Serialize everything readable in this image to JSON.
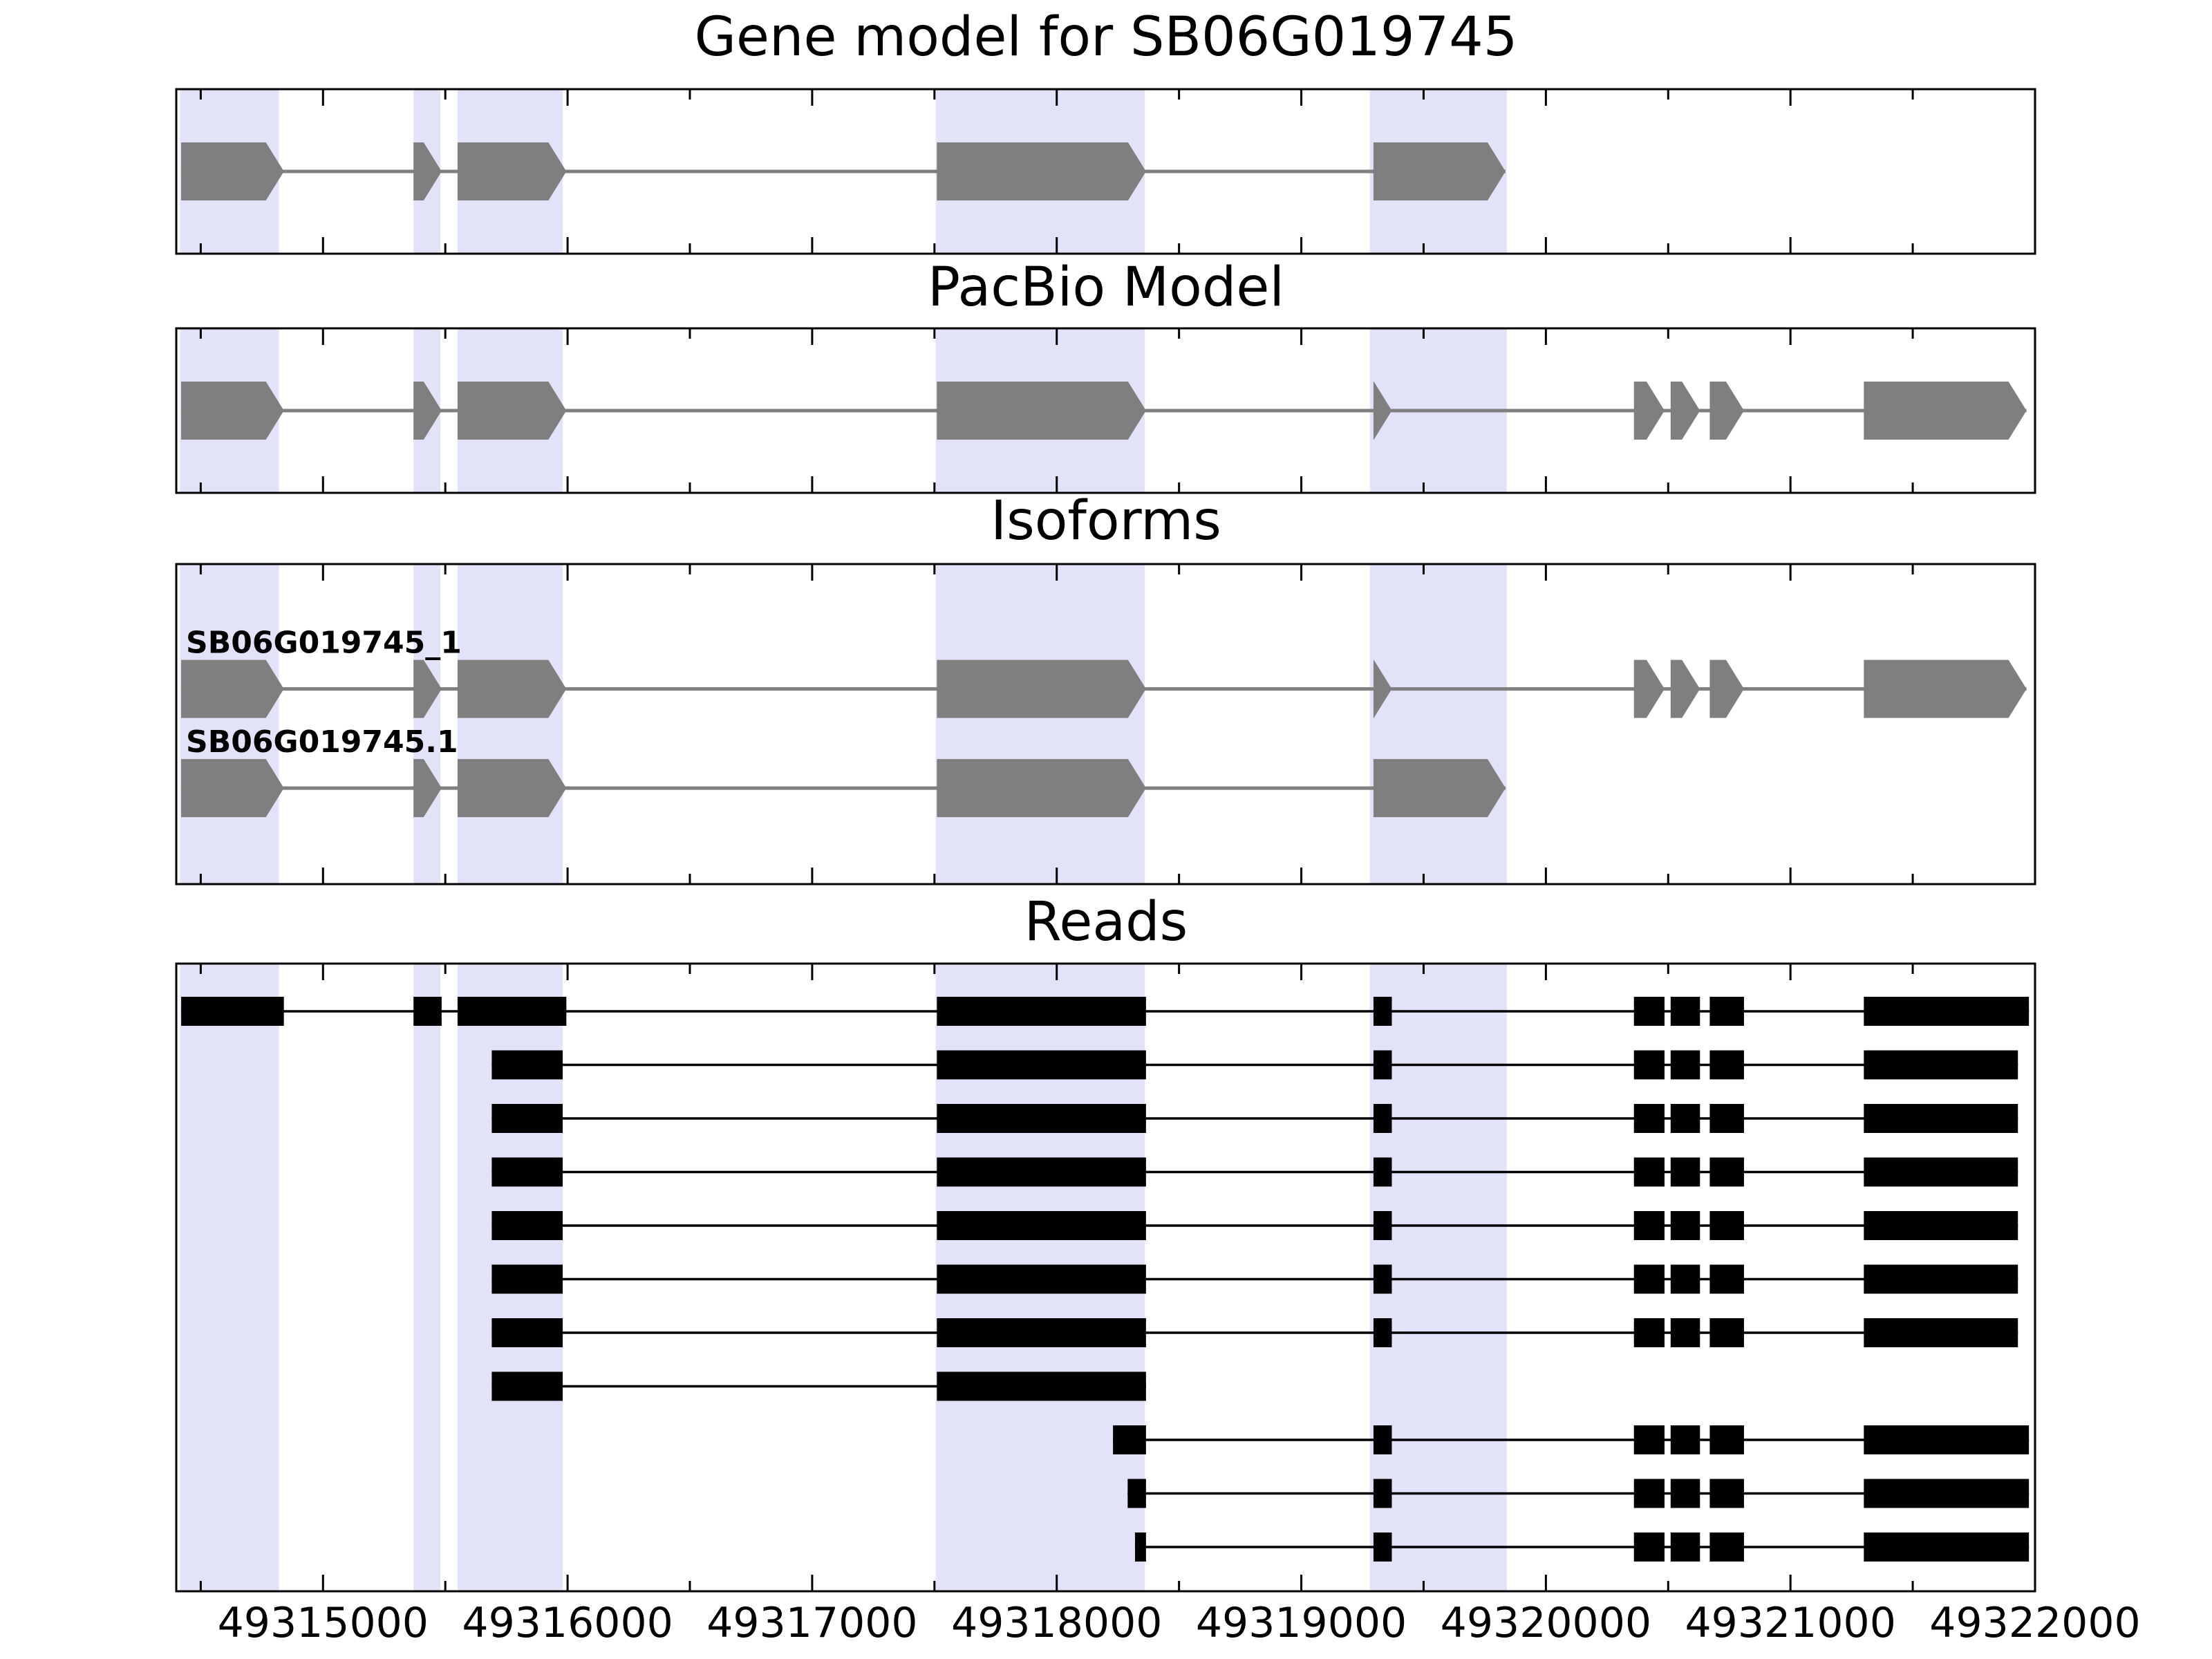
{
  "chart_data": {
    "type": "gene-model-tracks",
    "description": "Genome-browser style figure with four stacked tracks sharing one x axis (genomic coordinates). Grey pentagon arrows are exons pointing in transcription direction, thin grey lines are introns, black boxes are aligned read segments, lavender vertical bands highlight reference exon regions.",
    "x_axis": {
      "min": 49314400,
      "max": 49322000,
      "major_tick_interval": 1000,
      "minor_tick_interval": 500,
      "tick_values": [
        49315000,
        49316000,
        49317000,
        49318000,
        49319000,
        49320000,
        49321000,
        49322000
      ],
      "tick_labels": [
        "49315000",
        "49316000",
        "49317000",
        "49318000",
        "49319000",
        "49320000",
        "49321000",
        "49322000"
      ]
    },
    "colors": {
      "exon": "#7f7f7f",
      "intron_line": "#7f7f7f",
      "read": "#000000",
      "highlight": "#e2e2f8",
      "axis": "#000000"
    },
    "highlight_regions": [
      [
        49314415,
        49314820
      ],
      [
        49315370,
        49315480
      ],
      [
        49315550,
        49315980
      ],
      [
        49317505,
        49318360
      ],
      [
        49319280,
        49319840
      ]
    ],
    "panels": [
      {
        "id": "gene-model",
        "title": "Gene model for SB06G019745",
        "kind": "transcripts",
        "transcripts": [
          {
            "label": "",
            "strand": "+",
            "exons": [
              [
                49314420,
                49314840
              ],
              [
                49315370,
                49315485
              ],
              [
                49315550,
                49315995
              ],
              [
                49317510,
                49318365
              ],
              [
                49319295,
                49319835
              ]
            ]
          }
        ]
      },
      {
        "id": "pacbio-model",
        "title": "PacBio Model",
        "kind": "transcripts",
        "transcripts": [
          {
            "label": "",
            "strand": "+",
            "exons": [
              [
                49314420,
                49314840
              ],
              [
                49315370,
                49315485
              ],
              [
                49315550,
                49315995
              ],
              [
                49317510,
                49318365
              ],
              [
                49319295,
                49319370
              ],
              [
                49320360,
                49320485
              ],
              [
                49320510,
                49320630
              ],
              [
                49320670,
                49320810
              ],
              [
                49321300,
                49321965
              ]
            ]
          }
        ]
      },
      {
        "id": "isoforms",
        "title": "Isoforms",
        "kind": "transcripts",
        "transcripts": [
          {
            "label": "SB06G019745_1",
            "strand": "+",
            "exons": [
              [
                49314420,
                49314840
              ],
              [
                49315370,
                49315485
              ],
              [
                49315550,
                49315995
              ],
              [
                49317510,
                49318365
              ],
              [
                49319295,
                49319370
              ],
              [
                49320360,
                49320485
              ],
              [
                49320510,
                49320630
              ],
              [
                49320670,
                49320810
              ],
              [
                49321300,
                49321965
              ]
            ]
          },
          {
            "label": "SB06G019745.1",
            "strand": "+",
            "exons": [
              [
                49314420,
                49314840
              ],
              [
                49315370,
                49315485
              ],
              [
                49315550,
                49315995
              ],
              [
                49317510,
                49318365
              ],
              [
                49319295,
                49319835
              ]
            ]
          }
        ]
      },
      {
        "id": "reads",
        "title": "Reads",
        "kind": "reads",
        "reads": [
          {
            "segments": [
              [
                49314420,
                49314840
              ],
              [
                49315370,
                49315485
              ],
              [
                49315550,
                49315995
              ],
              [
                49317510,
                49318365
              ],
              [
                49319295,
                49319370
              ],
              [
                49320360,
                49320485
              ],
              [
                49320510,
                49320630
              ],
              [
                49320670,
                49320810
              ],
              [
                49321300,
                49321975
              ]
            ]
          },
          {
            "segments": [
              [
                49315690,
                49315980
              ],
              [
                49317510,
                49318365
              ],
              [
                49319295,
                49319370
              ],
              [
                49320360,
                49320485
              ],
              [
                49320510,
                49320630
              ],
              [
                49320670,
                49320810
              ],
              [
                49321300,
                49321930
              ]
            ]
          },
          {
            "segments": [
              [
                49315690,
                49315980
              ],
              [
                49317510,
                49318365
              ],
              [
                49319295,
                49319370
              ],
              [
                49320360,
                49320485
              ],
              [
                49320510,
                49320630
              ],
              [
                49320670,
                49320810
              ],
              [
                49321300,
                49321930
              ]
            ]
          },
          {
            "segments": [
              [
                49315690,
                49315980
              ],
              [
                49317510,
                49318365
              ],
              [
                49319295,
                49319370
              ],
              [
                49320360,
                49320485
              ],
              [
                49320510,
                49320630
              ],
              [
                49320670,
                49320810
              ],
              [
                49321300,
                49321930
              ]
            ]
          },
          {
            "segments": [
              [
                49315690,
                49315980
              ],
              [
                49317510,
                49318365
              ],
              [
                49319295,
                49319370
              ],
              [
                49320360,
                49320485
              ],
              [
                49320510,
                49320630
              ],
              [
                49320670,
                49320810
              ],
              [
                49321300,
                49321930
              ]
            ]
          },
          {
            "segments": [
              [
                49315690,
                49315980
              ],
              [
                49317510,
                49318365
              ],
              [
                49319295,
                49319370
              ],
              [
                49320360,
                49320485
              ],
              [
                49320510,
                49320630
              ],
              [
                49320670,
                49320810
              ],
              [
                49321300,
                49321930
              ]
            ]
          },
          {
            "segments": [
              [
                49315690,
                49315980
              ],
              [
                49317510,
                49318365
              ],
              [
                49319295,
                49319370
              ],
              [
                49320360,
                49320485
              ],
              [
                49320510,
                49320630
              ],
              [
                49320670,
                49320810
              ],
              [
                49321300,
                49321930
              ]
            ]
          },
          {
            "segments": [
              [
                49315690,
                49315980
              ],
              [
                49317510,
                49318365
              ]
            ]
          },
          {
            "segments": [
              [
                49318230,
                49318365
              ],
              [
                49319295,
                49319370
              ],
              [
                49320360,
                49320485
              ],
              [
                49320510,
                49320630
              ],
              [
                49320670,
                49320810
              ],
              [
                49321300,
                49321975
              ]
            ]
          },
          {
            "segments": [
              [
                49318290,
                49318365
              ],
              [
                49319295,
                49319370
              ],
              [
                49320360,
                49320485
              ],
              [
                49320510,
                49320630
              ],
              [
                49320670,
                49320810
              ],
              [
                49321300,
                49321975
              ]
            ]
          },
          {
            "segments": [
              [
                49318320,
                49318365
              ],
              [
                49319295,
                49319370
              ],
              [
                49320360,
                49320485
              ],
              [
                49320510,
                49320630
              ],
              [
                49320670,
                49320810
              ],
              [
                49321300,
                49321975
              ]
            ]
          }
        ]
      }
    ]
  }
}
